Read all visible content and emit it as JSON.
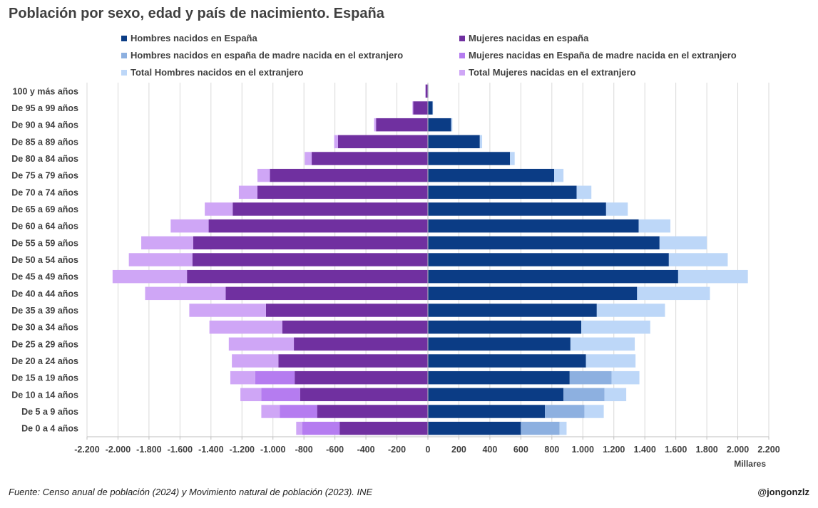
{
  "title": "Población por sexo, edad y país de nacimiento. España",
  "source": "Fuente: Censo anual de población (2024) y Movimiento natural de población (2023). INE",
  "author": "@jongonzlz",
  "colors": {
    "hombres_espana": "#0b3c85",
    "hombres_madre_ext": "#8db0e0",
    "hombres_ext": "#bdd7f8",
    "mujeres_espana": "#7030a0",
    "mujeres_madre_ext": "#b57cf0",
    "mujeres_ext": "#cfa6f6"
  },
  "legend": [
    {
      "label": "Hombres nacidos en España",
      "color": "#0b3c85"
    },
    {
      "label": "Mujeres nacidas en españa",
      "color": "#7030a0"
    },
    {
      "label": "Hombres nacidos en españa de madre nacida en el extranjero",
      "color": "#8db0e0"
    },
    {
      "label": "Mujeres nacidas en España de madre nacida en el extranjero",
      "color": "#b57cf0"
    },
    {
      "label": "Total Hombres nacidos en el extranjero",
      "color": "#bdd7f8"
    },
    {
      "label": "Total Mujeres nacidas en el extranjero",
      "color": "#cfa6f6"
    }
  ],
  "chart_data": {
    "type": "bar",
    "orientation": "horizontal-population-pyramid",
    "xlabel": "Millares",
    "xlim": [
      -2200,
      2200
    ],
    "xticks": [
      -2200,
      -2000,
      -1800,
      -1600,
      -1400,
      -1200,
      -1000,
      -800,
      -600,
      -400,
      -200,
      0,
      200,
      400,
      600,
      800,
      1000,
      1200,
      1400,
      1600,
      1800,
      2000,
      2200
    ],
    "xtick_labels": [
      "-2.200",
      "-2.000",
      "-1.800",
      "-1.600",
      "-1.400",
      "-1.200",
      "-1.000",
      "-800",
      "-600",
      "-400",
      "-200",
      "0",
      "200",
      "400",
      "600",
      "800",
      "1.000",
      "1.200",
      "1.400",
      "1.600",
      "1.800",
      "2.000",
      "2.200"
    ],
    "grid": true,
    "legend_position": "top",
    "categories": [
      "100 y más años",
      "De 95 a 99 años",
      "De 90 a 94 años",
      "De 85 a 89 años",
      "De 80 a 84 años",
      "De 75 a 79 años",
      "De 70 a 74 años",
      "De 65 a 69 años",
      "De 60 a 64 años",
      "De 55 a 59 años",
      "De 50 a 54 años",
      "De 45 a 49 años",
      "De 40 a 44 años",
      "De 35 a 39 años",
      "De 30 a 34 años",
      "De 25 a 29 años",
      "De 20 a 24 años",
      "De 15 a 19 años",
      "De 10 a 14 años",
      "De 5 a 9 años",
      "De 0 a 4 años"
    ],
    "series": [
      {
        "name": "Hombres nacidos en España",
        "side": "right",
        "values": [
          3,
          30,
          150,
          335,
          530,
          815,
          960,
          1150,
          1360,
          1495,
          1555,
          1615,
          1350,
          1090,
          990,
          920,
          1020,
          915,
          875,
          755,
          600
        ]
      },
      {
        "name": "Hombres nacidos en españa de madre nacida en el extranjero",
        "side": "right",
        "values": [
          0,
          0,
          0,
          0,
          0,
          0,
          0,
          0,
          0,
          0,
          0,
          0,
          0,
          0,
          0,
          0,
          0,
          270,
          265,
          255,
          250
        ]
      },
      {
        "name": "Total Hombres nacidos en el extranjero",
        "side": "right",
        "values": [
          1,
          3,
          8,
          15,
          30,
          60,
          95,
          140,
          205,
          305,
          380,
          450,
          470,
          440,
          445,
          415,
          320,
          180,
          140,
          125,
          45
        ]
      },
      {
        "name": "Mujeres nacidas en españa",
        "side": "left",
        "values": [
          15,
          95,
          335,
          580,
          750,
          1020,
          1100,
          1260,
          1415,
          1515,
          1520,
          1555,
          1305,
          1045,
          940,
          865,
          965,
          860,
          825,
          715,
          570
        ]
      },
      {
        "name": "Mujeres nacidas en España de madre nacida en el extranjero",
        "side": "left",
        "values": [
          0,
          0,
          0,
          0,
          0,
          0,
          0,
          0,
          0,
          0,
          0,
          0,
          0,
          0,
          0,
          0,
          0,
          255,
          250,
          240,
          240
        ]
      },
      {
        "name": "Total Mujeres nacidas en el extranjero",
        "side": "left",
        "values": [
          2,
          5,
          12,
          25,
          45,
          80,
          120,
          180,
          245,
          335,
          410,
          480,
          520,
          495,
          470,
          420,
          300,
          160,
          135,
          120,
          40
        ]
      }
    ]
  }
}
